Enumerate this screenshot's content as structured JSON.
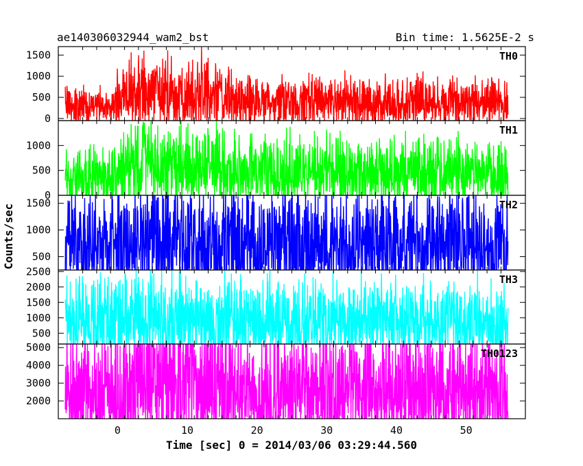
{
  "chart_data": {
    "type": "line",
    "header_left": "ae140306032944_wam2_bst",
    "header_right": "Bin time: 1.5625E-2 s",
    "xlabel": "Time [sec] 0 = 2014/03/06 03:29:44.560",
    "ylabel": "Counts/sec",
    "xlim": [
      -8.5,
      58.5
    ],
    "x_ticks": [
      "0",
      "10",
      "20",
      "30",
      "40",
      "50"
    ],
    "x_tick_values": [
      0,
      10,
      20,
      30,
      40,
      50
    ],
    "data_x_range": [
      -7.5,
      56
    ],
    "bin_time": 0.015625,
    "panels": [
      {
        "name": "TH0",
        "color": "#ff0000",
        "ylim": [
          -50,
          1700
        ],
        "yticks": [
          0,
          500,
          1000,
          1500
        ],
        "profile": [
          [
            -7.5,
            300
          ],
          [
            -0.5,
            300
          ],
          [
            0,
            450
          ],
          [
            3,
            600
          ],
          [
            5,
            650
          ],
          [
            8,
            500
          ],
          [
            13,
            560
          ],
          [
            18,
            400
          ],
          [
            56,
            370
          ]
        ]
      },
      {
        "name": "TH1",
        "color": "#00ff00",
        "ylim": [
          0,
          1500
        ],
        "yticks": [
          0,
          500,
          1000
        ],
        "profile": [
          [
            -7.5,
            350
          ],
          [
            -0.5,
            380
          ],
          [
            0.5,
            600
          ],
          [
            4,
            700
          ],
          [
            6,
            550
          ],
          [
            12,
            560
          ],
          [
            18,
            470
          ],
          [
            56,
            440
          ]
        ]
      },
      {
        "name": "TH2",
        "color": "#0000ff",
        "ylim": [
          250,
          1650
        ],
        "yticks": [
          500,
          1000,
          1500
        ],
        "profile": [
          [
            -7.5,
            700
          ],
          [
            -0.5,
            680
          ],
          [
            1,
            780
          ],
          [
            5,
            800
          ],
          [
            13,
            760
          ],
          [
            20,
            700
          ],
          [
            56,
            680
          ]
        ]
      },
      {
        "name": "TH3",
        "color": "#00ffff",
        "ylim": [
          150,
          2550
        ],
        "yticks": [
          500,
          1000,
          1500,
          2000,
          2500
        ],
        "profile": [
          [
            -7.5,
            900
          ],
          [
            0,
            920
          ],
          [
            4,
            1000
          ],
          [
            12,
            960
          ],
          [
            20,
            900
          ],
          [
            56,
            880
          ]
        ]
      },
      {
        "name": "TH0123",
        "color": "#ff00ff",
        "ylim": [
          1000,
          5200
        ],
        "yticks": [
          2000,
          3000,
          4000,
          5000
        ],
        "profile": [
          [
            -7.5,
            2300
          ],
          [
            -0.5,
            2300
          ],
          [
            1,
            2900
          ],
          [
            4,
            3200
          ],
          [
            6,
            2900
          ],
          [
            12,
            2950
          ],
          [
            18,
            2450
          ],
          [
            56,
            2300
          ]
        ]
      }
    ]
  }
}
